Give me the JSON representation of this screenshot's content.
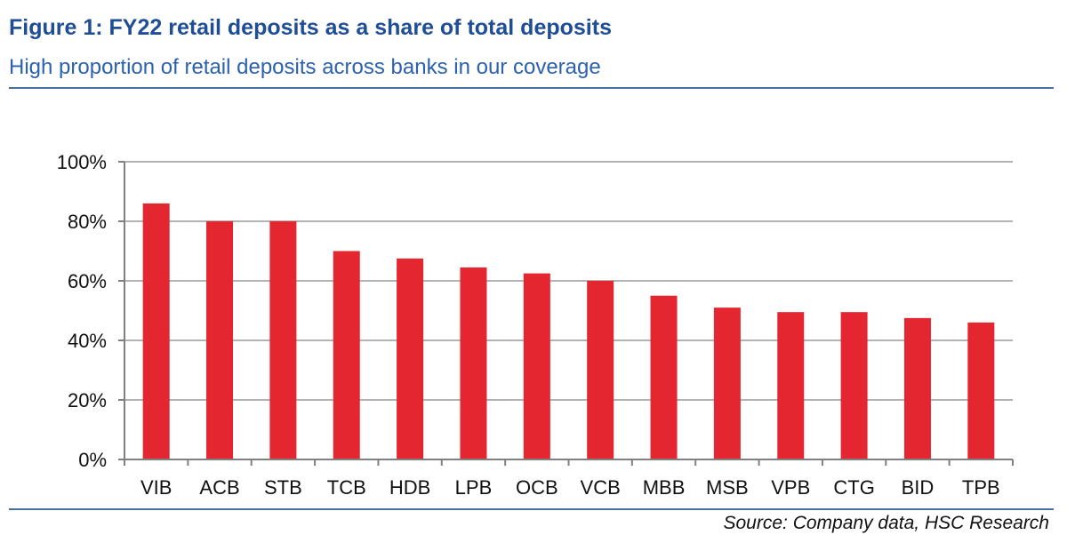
{
  "header": {
    "title": "Figure 1: FY22 retail deposits as a share of total deposits",
    "subtitle": "High proportion of retail deposits across banks in our coverage"
  },
  "footer": {
    "source": "Source: Company data, HSC Research"
  },
  "chart_data": {
    "type": "bar",
    "title": "Figure 1: FY22 retail deposits as a share of total deposits",
    "subtitle": "High proportion of retail deposits across banks in our coverage",
    "xlabel": "",
    "ylabel": "",
    "categories": [
      "VIB",
      "ACB",
      "STB",
      "TCB",
      "HDB",
      "LPB",
      "OCB",
      "VCB",
      "MBB",
      "MSB",
      "VPB",
      "CTG",
      "BID",
      "TPB"
    ],
    "values": [
      86,
      80,
      80,
      70,
      67.5,
      64.5,
      62.5,
      60,
      55,
      51,
      49.5,
      49.5,
      47.5,
      46
    ],
    "ylim": [
      0,
      100
    ],
    "yticks": [
      0,
      20,
      40,
      60,
      80,
      100
    ],
    "ytick_labels": [
      "0%",
      "20%",
      "40%",
      "60%",
      "80%",
      "100%"
    ],
    "grid": true,
    "legend": "none",
    "colors": {
      "bar": "#e3262f",
      "grid": "#b3b3b3",
      "axis": "#808080",
      "tick_text": "#111111"
    }
  }
}
